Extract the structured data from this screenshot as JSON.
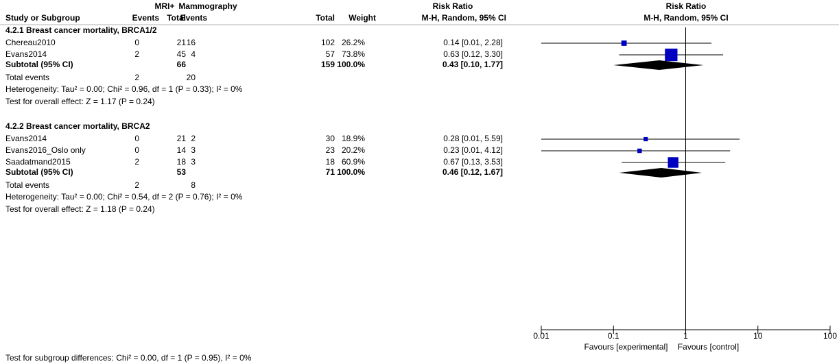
{
  "chart_data": {
    "type": "forest",
    "header": {
      "group1": "MRI+",
      "group2": "Mammography",
      "effect": "Risk Ratio",
      "plot_title": "Risk Ratio"
    },
    "columns": [
      "Study or Subgroup",
      "Events",
      "Total",
      "Events",
      "Total",
      "Weight",
      "M-H, Random, 95% CI",
      "M-H, Random, 95% CI"
    ],
    "subgroups": [
      {
        "title": "4.2.1 Breast cancer mortality, BRCA1/2",
        "studies": [
          {
            "name": "Chereau2010",
            "events1": 0,
            "total1": 21,
            "events2": 16,
            "total2": 102,
            "weight": 26.2,
            "weight_label": "26.2%",
            "rr": 0.14,
            "ci_low": 0.01,
            "ci_high": 2.28,
            "ci_label": "0.14 [0.01, 2.28]"
          },
          {
            "name": "Evans2014",
            "events1": 2,
            "total1": 45,
            "events2": 4,
            "total2": 57,
            "weight": 73.8,
            "weight_label": "73.8%",
            "rr": 0.63,
            "ci_low": 0.12,
            "ci_high": 3.3,
            "ci_label": "0.63 [0.12, 3.30]"
          }
        ],
        "subtotal": {
          "label": "Subtotal (95% CI)",
          "total1": 66,
          "total2": 159,
          "weight_label": "100.0%",
          "rr": 0.43,
          "ci_low": 0.1,
          "ci_high": 1.77,
          "ci_label": "0.43 [0.10, 1.77]"
        },
        "total_events": {
          "label": "Total events",
          "events1": 2,
          "events2": 20
        },
        "heterogeneity": "Heterogeneity: Tau² = 0.00; Chi² = 0.96, df = 1 (P = 0.33); I² = 0%",
        "overall": "Test for overall effect: Z = 1.17 (P = 0.24)"
      },
      {
        "title": "4.2.2 Breast cancer mortality, BRCA2",
        "studies": [
          {
            "name": "Evans2014",
            "events1": 0,
            "total1": 21,
            "events2": 2,
            "total2": 30,
            "weight": 18.9,
            "weight_label": "18.9%",
            "rr": 0.28,
            "ci_low": 0.01,
            "ci_high": 5.59,
            "ci_label": "0.28 [0.01, 5.59]"
          },
          {
            "name": "Evans2016_Oslo only",
            "events1": 0,
            "total1": 14,
            "events2": 3,
            "total2": 23,
            "weight": 20.2,
            "weight_label": "20.2%",
            "rr": 0.23,
            "ci_low": 0.01,
            "ci_high": 4.12,
            "ci_label": "0.23 [0.01, 4.12]"
          },
          {
            "name": "Saadatmand2015",
            "events1": 2,
            "total1": 18,
            "events2": 3,
            "total2": 18,
            "weight": 60.9,
            "weight_label": "60.9%",
            "rr": 0.67,
            "ci_low": 0.13,
            "ci_high": 3.53,
            "ci_label": "0.67 [0.13, 3.53]"
          }
        ],
        "subtotal": {
          "label": "Subtotal (95% CI)",
          "total1": 53,
          "total2": 71,
          "weight_label": "100.0%",
          "rr": 0.46,
          "ci_low": 0.12,
          "ci_high": 1.67,
          "ci_label": "0.46 [0.12, 1.67]"
        },
        "total_events": {
          "label": "Total events",
          "events1": 2,
          "events2": 8
        },
        "heterogeneity": "Heterogeneity: Tau² = 0.00; Chi² = 0.54, df = 2 (P = 0.76); I² = 0%",
        "overall": "Test for overall effect: Z = 1.18 (P = 0.24)"
      }
    ],
    "subgroup_differences": "Test for subgroup differences: Chi² = 0.00, df = 1 (P = 0.95), I² = 0%",
    "log_scale": true,
    "xlim": [
      0.01,
      100
    ],
    "xticks": [
      0.01,
      0.1,
      1,
      10,
      100
    ],
    "reference_line": 1,
    "favours_left": "Favours [experimental]",
    "favours_right": "Favours [control]",
    "marker_color": "#0000c0",
    "diamond_color": "#000000"
  }
}
